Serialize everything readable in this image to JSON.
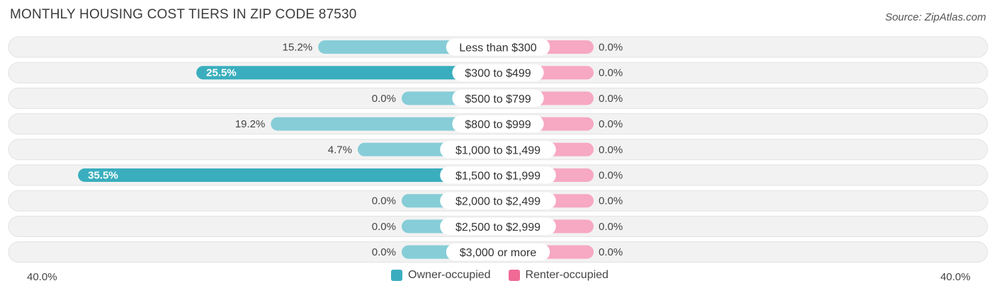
{
  "title": "MONTHLY HOUSING COST TIERS IN ZIP CODE 87530",
  "source": "Source: ZipAtlas.com",
  "chart_data": {
    "type": "bar",
    "orientation": "horizontal-diverging",
    "categories": [
      "Less than $300",
      "$300 to $499",
      "$500 to $799",
      "$800 to $999",
      "$1,000 to $1,499",
      "$1,500 to $1,999",
      "$2,000 to $2,499",
      "$2,500 to $2,999",
      "$3,000 or more"
    ],
    "series": [
      {
        "name": "Owner-occupied",
        "values": [
          15.2,
          25.5,
          0.0,
          19.2,
          4.7,
          35.5,
          0.0,
          0.0,
          0.0
        ],
        "labels": [
          "15.2%",
          "25.5%",
          "0.0%",
          "19.2%",
          "4.7%",
          "35.5%",
          "0.0%",
          "0.0%",
          "0.0%"
        ],
        "color": "#3aaebe",
        "light_color": "#86cdd7",
        "side": "left"
      },
      {
        "name": "Renter-occupied",
        "values": [
          0.0,
          0.0,
          0.0,
          0.0,
          0.0,
          0.0,
          0.0,
          0.0,
          0.0
        ],
        "labels": [
          "0.0%",
          "0.0%",
          "0.0%",
          "0.0%",
          "0.0%",
          "0.0%",
          "0.0%",
          "0.0%",
          "0.0%"
        ],
        "color": "#f06a96",
        "light_color": "#f7a8c2",
        "side": "right"
      }
    ],
    "xlim": [
      -40,
      40
    ],
    "axis_labels": {
      "left": "40.0%",
      "right": "40.0%"
    },
    "legend_position": "bottom-center",
    "grid": false
  }
}
